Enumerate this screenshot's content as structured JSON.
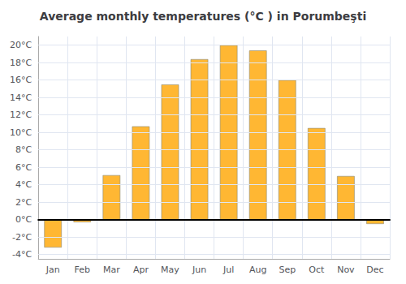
{
  "chart_data": {
    "type": "bar",
    "title": "Average monthly temperatures (°C ) in Porumbeşti",
    "categories": [
      "Jan",
      "Feb",
      "Mar",
      "Apr",
      "May",
      "Jun",
      "Jul",
      "Aug",
      "Sep",
      "Oct",
      "Nov",
      "Dec"
    ],
    "values": [
      -3.2,
      -0.3,
      5.1,
      10.7,
      15.5,
      18.4,
      20.0,
      19.4,
      16.0,
      10.5,
      5.0,
      -0.5
    ],
    "color": "#FFB733",
    "ylim": [
      -4.5,
      21
    ],
    "yticks": [
      {
        "value": -4,
        "label": "-4°C"
      },
      {
        "value": -2,
        "label": "-2°C"
      },
      {
        "value": 0,
        "label": "0°C"
      },
      {
        "value": 2,
        "label": "2°C"
      },
      {
        "value": 4,
        "label": "4°C"
      },
      {
        "value": 6,
        "label": "6°C"
      },
      {
        "value": 8,
        "label": "8°C"
      },
      {
        "value": 10,
        "label": "10°C"
      },
      {
        "value": 12,
        "label": "12°C"
      },
      {
        "value": 14,
        "label": "14°C"
      },
      {
        "value": 16,
        "label": "16°C"
      },
      {
        "value": 18,
        "label": "18°C"
      },
      {
        "value": 20,
        "label": "20°C"
      }
    ],
    "grid": true
  }
}
